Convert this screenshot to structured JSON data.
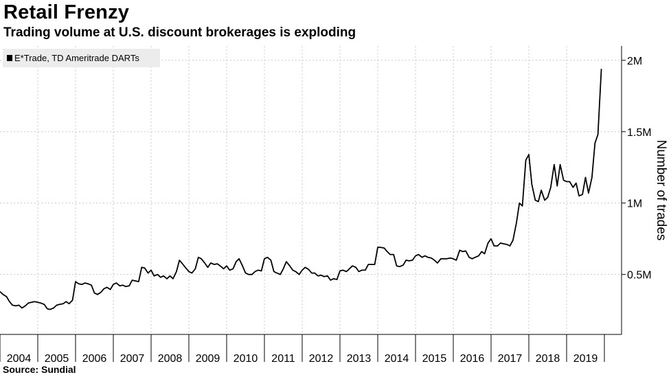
{
  "title": "Retail Frenzy",
  "subtitle": "Trading volume at U.S. discount brokerages is exploding",
  "source": "Source: Sundial",
  "chart_data": {
    "type": "line",
    "legend": "E*Trade, TD Ameritrade DARTs",
    "legend_position": "top-left",
    "ylabel": "Number of trades",
    "y_ticks": [
      {
        "value": 500000,
        "label": "0.5M"
      },
      {
        "value": 1000000,
        "label": "1M"
      },
      {
        "value": 1500000,
        "label": "1.5M"
      },
      {
        "value": 2000000,
        "label": "2M"
      }
    ],
    "x_ticks": [
      "2004",
      "2005",
      "2006",
      "2007",
      "2008",
      "2009",
      "2010",
      "2011",
      "2012",
      "2013",
      "2014",
      "2015",
      "2016",
      "2017",
      "2018",
      "2019"
    ],
    "xlim": [
      2004.0,
      2020.0
    ],
    "ylim": [
      80000,
      2100000
    ],
    "grid": true,
    "line_color": "#000000",
    "series": [
      {
        "name": "E*Trade, TD Ameritrade DARTs",
        "points": [
          [
            2004.0,
            380000
          ],
          [
            2004.08,
            360000
          ],
          [
            2004.17,
            345000
          ],
          [
            2004.25,
            310000
          ],
          [
            2004.33,
            285000
          ],
          [
            2004.42,
            280000
          ],
          [
            2004.5,
            285000
          ],
          [
            2004.58,
            265000
          ],
          [
            2004.67,
            280000
          ],
          [
            2004.75,
            300000
          ],
          [
            2004.83,
            305000
          ],
          [
            2004.92,
            310000
          ],
          [
            2005.0,
            305000
          ],
          [
            2005.08,
            300000
          ],
          [
            2005.17,
            290000
          ],
          [
            2005.25,
            260000
          ],
          [
            2005.33,
            255000
          ],
          [
            2005.42,
            265000
          ],
          [
            2005.5,
            285000
          ],
          [
            2005.58,
            290000
          ],
          [
            2005.67,
            295000
          ],
          [
            2005.75,
            310000
          ],
          [
            2005.83,
            295000
          ],
          [
            2005.92,
            320000
          ],
          [
            2006.0,
            450000
          ],
          [
            2006.08,
            435000
          ],
          [
            2006.17,
            430000
          ],
          [
            2006.25,
            440000
          ],
          [
            2006.33,
            435000
          ],
          [
            2006.42,
            425000
          ],
          [
            2006.5,
            370000
          ],
          [
            2006.58,
            360000
          ],
          [
            2006.67,
            375000
          ],
          [
            2006.75,
            400000
          ],
          [
            2006.83,
            410000
          ],
          [
            2006.92,
            395000
          ],
          [
            2007.0,
            430000
          ],
          [
            2007.08,
            440000
          ],
          [
            2007.17,
            420000
          ],
          [
            2007.25,
            425000
          ],
          [
            2007.33,
            415000
          ],
          [
            2007.42,
            420000
          ],
          [
            2007.5,
            460000
          ],
          [
            2007.58,
            455000
          ],
          [
            2007.67,
            450000
          ],
          [
            2007.75,
            550000
          ],
          [
            2007.83,
            545000
          ],
          [
            2007.92,
            510000
          ],
          [
            2008.0,
            530000
          ],
          [
            2008.08,
            490000
          ],
          [
            2008.17,
            500000
          ],
          [
            2008.25,
            480000
          ],
          [
            2008.33,
            490000
          ],
          [
            2008.42,
            470000
          ],
          [
            2008.5,
            490000
          ],
          [
            2008.58,
            470000
          ],
          [
            2008.67,
            520000
          ],
          [
            2008.75,
            600000
          ],
          [
            2008.83,
            575000
          ],
          [
            2008.92,
            545000
          ],
          [
            2009.0,
            520000
          ],
          [
            2009.08,
            510000
          ],
          [
            2009.17,
            540000
          ],
          [
            2009.25,
            620000
          ],
          [
            2009.33,
            610000
          ],
          [
            2009.42,
            580000
          ],
          [
            2009.5,
            550000
          ],
          [
            2009.58,
            580000
          ],
          [
            2009.67,
            570000
          ],
          [
            2009.75,
            575000
          ],
          [
            2009.83,
            560000
          ],
          [
            2009.92,
            540000
          ],
          [
            2010.0,
            560000
          ],
          [
            2010.08,
            530000
          ],
          [
            2010.17,
            540000
          ],
          [
            2010.25,
            590000
          ],
          [
            2010.33,
            610000
          ],
          [
            2010.42,
            560000
          ],
          [
            2010.5,
            510000
          ],
          [
            2010.58,
            500000
          ],
          [
            2010.67,
            500000
          ],
          [
            2010.75,
            520000
          ],
          [
            2010.83,
            530000
          ],
          [
            2010.92,
            525000
          ],
          [
            2011.0,
            610000
          ],
          [
            2011.08,
            620000
          ],
          [
            2011.17,
            600000
          ],
          [
            2011.25,
            520000
          ],
          [
            2011.33,
            510000
          ],
          [
            2011.42,
            500000
          ],
          [
            2011.5,
            540000
          ],
          [
            2011.58,
            590000
          ],
          [
            2011.67,
            560000
          ],
          [
            2011.75,
            530000
          ],
          [
            2011.83,
            520000
          ],
          [
            2011.92,
            500000
          ],
          [
            2012.0,
            530000
          ],
          [
            2012.08,
            550000
          ],
          [
            2012.17,
            535000
          ],
          [
            2012.25,
            510000
          ],
          [
            2012.33,
            510000
          ],
          [
            2012.42,
            490000
          ],
          [
            2012.5,
            495000
          ],
          [
            2012.58,
            485000
          ],
          [
            2012.67,
            490000
          ],
          [
            2012.75,
            460000
          ],
          [
            2012.83,
            470000
          ],
          [
            2012.92,
            465000
          ],
          [
            2013.0,
            525000
          ],
          [
            2013.08,
            530000
          ],
          [
            2013.17,
            520000
          ],
          [
            2013.25,
            540000
          ],
          [
            2013.33,
            560000
          ],
          [
            2013.42,
            550000
          ],
          [
            2013.5,
            520000
          ],
          [
            2013.58,
            530000
          ],
          [
            2013.67,
            530000
          ],
          [
            2013.75,
            570000
          ],
          [
            2013.83,
            570000
          ],
          [
            2013.92,
            570000
          ],
          [
            2014.0,
            690000
          ],
          [
            2014.08,
            690000
          ],
          [
            2014.17,
            685000
          ],
          [
            2014.25,
            660000
          ],
          [
            2014.33,
            640000
          ],
          [
            2014.42,
            640000
          ],
          [
            2014.5,
            560000
          ],
          [
            2014.58,
            555000
          ],
          [
            2014.67,
            565000
          ],
          [
            2014.75,
            600000
          ],
          [
            2014.83,
            595000
          ],
          [
            2014.92,
            600000
          ],
          [
            2015.0,
            630000
          ],
          [
            2015.08,
            640000
          ],
          [
            2015.17,
            620000
          ],
          [
            2015.25,
            630000
          ],
          [
            2015.33,
            620000
          ],
          [
            2015.42,
            615000
          ],
          [
            2015.5,
            600000
          ],
          [
            2015.58,
            580000
          ],
          [
            2015.67,
            610000
          ],
          [
            2015.75,
            610000
          ],
          [
            2015.83,
            610000
          ],
          [
            2015.92,
            615000
          ],
          [
            2016.0,
            610000
          ],
          [
            2016.08,
            600000
          ],
          [
            2016.17,
            670000
          ],
          [
            2016.25,
            660000
          ],
          [
            2016.33,
            665000
          ],
          [
            2016.42,
            620000
          ],
          [
            2016.5,
            610000
          ],
          [
            2016.58,
            620000
          ],
          [
            2016.67,
            630000
          ],
          [
            2016.75,
            660000
          ],
          [
            2016.83,
            645000
          ],
          [
            2016.92,
            720000
          ],
          [
            2017.0,
            750000
          ],
          [
            2017.08,
            700000
          ],
          [
            2017.17,
            700000
          ],
          [
            2017.25,
            720000
          ],
          [
            2017.33,
            715000
          ],
          [
            2017.42,
            710000
          ],
          [
            2017.5,
            700000
          ],
          [
            2017.58,
            740000
          ],
          [
            2017.67,
            860000
          ],
          [
            2017.75,
            1000000
          ],
          [
            2017.83,
            980000
          ],
          [
            2017.92,
            1300000
          ],
          [
            2018.0,
            1340000
          ],
          [
            2018.08,
            1130000
          ],
          [
            2018.17,
            1020000
          ],
          [
            2018.25,
            1010000
          ],
          [
            2018.33,
            1090000
          ],
          [
            2018.42,
            1020000
          ],
          [
            2018.5,
            1040000
          ],
          [
            2018.58,
            1110000
          ],
          [
            2018.67,
            1270000
          ],
          [
            2018.75,
            1120000
          ],
          [
            2018.83,
            1270000
          ],
          [
            2018.92,
            1160000
          ],
          [
            2019.0,
            1150000
          ],
          [
            2019.08,
            1150000
          ],
          [
            2019.17,
            1110000
          ],
          [
            2019.25,
            1140000
          ],
          [
            2019.33,
            1050000
          ],
          [
            2019.42,
            1060000
          ],
          [
            2019.5,
            1180000
          ],
          [
            2019.58,
            1070000
          ],
          [
            2019.67,
            1180000
          ],
          [
            2019.75,
            1420000
          ],
          [
            2019.83,
            1480000
          ],
          [
            2019.92,
            1940000
          ]
        ]
      }
    ]
  }
}
